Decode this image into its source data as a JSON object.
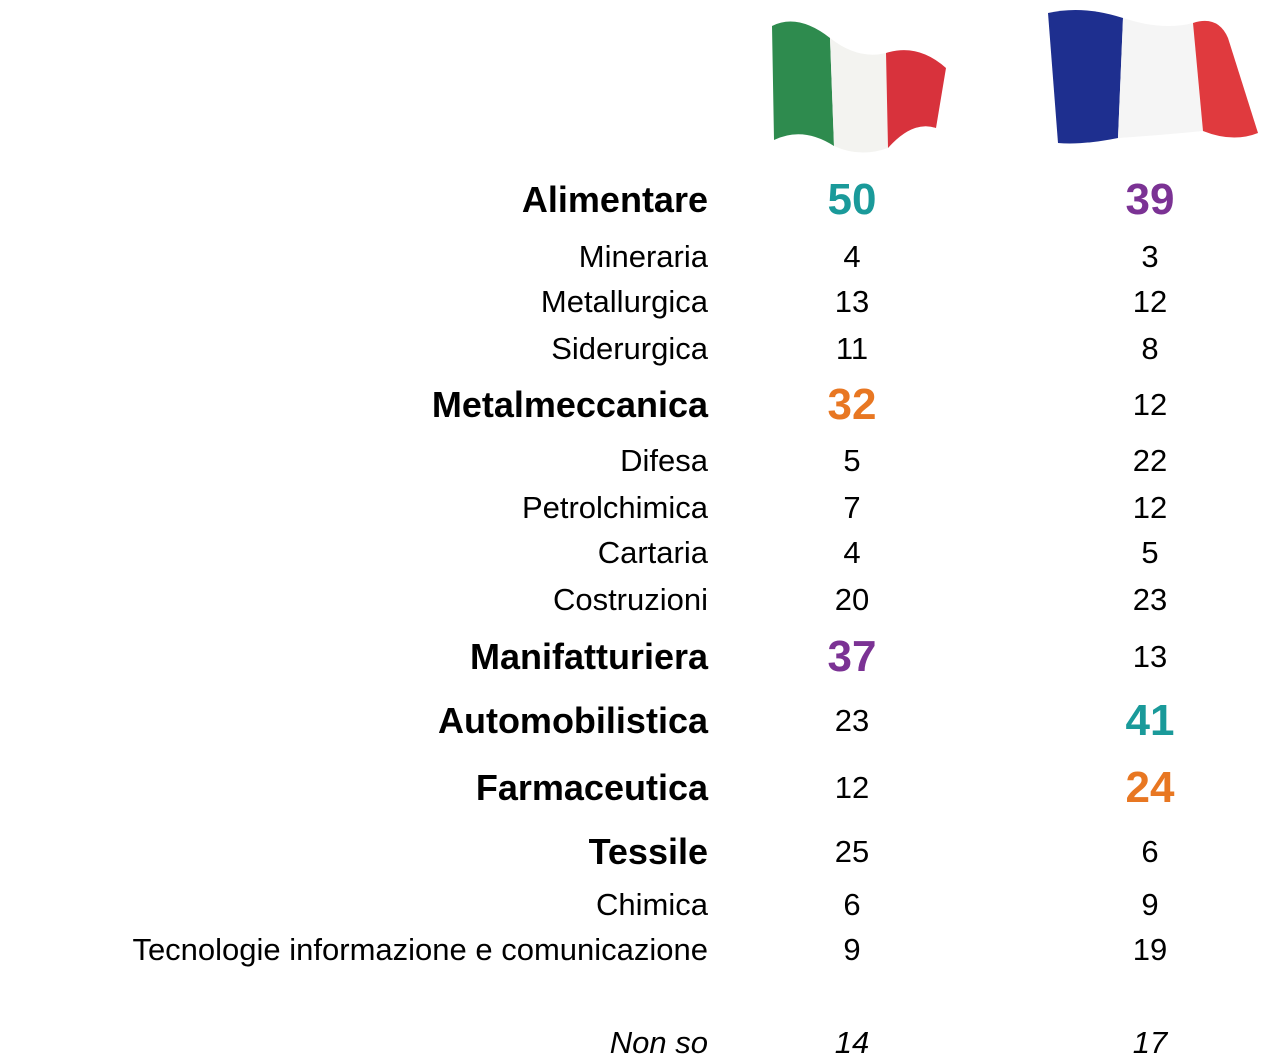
{
  "table": {
    "rows": [
      [
        "Alimentare",
        50,
        39
      ],
      [
        "Mineraria",
        4,
        3
      ],
      [
        "Metallurgica",
        13,
        12
      ],
      [
        "Siderurgica",
        11,
        8
      ],
      [
        "Metalmeccanica",
        32,
        12
      ],
      [
        "Difesa",
        5,
        22
      ],
      [
        "Petrolchimica",
        7,
        12
      ],
      [
        "Cartaria",
        4,
        5
      ],
      [
        "Costruzioni",
        20,
        23
      ],
      [
        "Manifatturiera",
        37,
        13
      ],
      [
        "Automobilistica",
        23,
        41
      ],
      [
        "Farmaceutica",
        12,
        24
      ],
      [
        "Tessile",
        25,
        6
      ],
      [
        "Chimica",
        6,
        9
      ],
      [
        "Tecnologie informazione e comunicazione",
        9,
        19
      ],
      [
        "Non so",
        14,
        17
      ]
    ]
  }
}
